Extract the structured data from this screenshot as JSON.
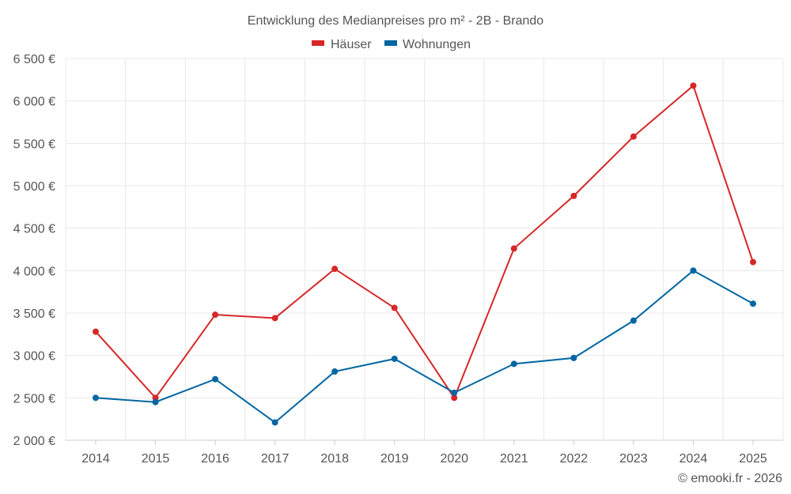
{
  "chart_data": {
    "type": "line",
    "title": "Entwicklung des Medianpreises pro m² - 2B - Brando",
    "categories": [
      "2014",
      "2015",
      "2016",
      "2017",
      "2018",
      "2019",
      "2020",
      "2021",
      "2022",
      "2023",
      "2024",
      "2025"
    ],
    "series": [
      {
        "name": "Häuser",
        "color": "#d62728",
        "values": [
          3280,
          2500,
          3480,
          3440,
          4020,
          3560,
          2500,
          4260,
          4880,
          5580,
          6180,
          4100
        ]
      },
      {
        "name": "Wohnungen",
        "color": "#0066a1",
        "values": [
          2500,
          2450,
          2720,
          2210,
          2810,
          2960,
          2560,
          2900,
          2970,
          3410,
          4000,
          3610
        ]
      }
    ],
    "ylim": [
      2000,
      6500
    ],
    "yticks": [
      2000,
      2500,
      3000,
      3500,
      4000,
      4500,
      5000,
      5500,
      6000,
      6500
    ],
    "ytick_labels": [
      "2 000 €",
      "2 500 €",
      "3 000 €",
      "3 500 €",
      "4 000 €",
      "4 500 €",
      "5 000 €",
      "5 500 €",
      "6 000 €",
      "6 500 €"
    ],
    "xlabel": "",
    "ylabel": "",
    "grid": true,
    "legend_position": "top-center"
  },
  "credit": "© emooki.fr - 2026"
}
